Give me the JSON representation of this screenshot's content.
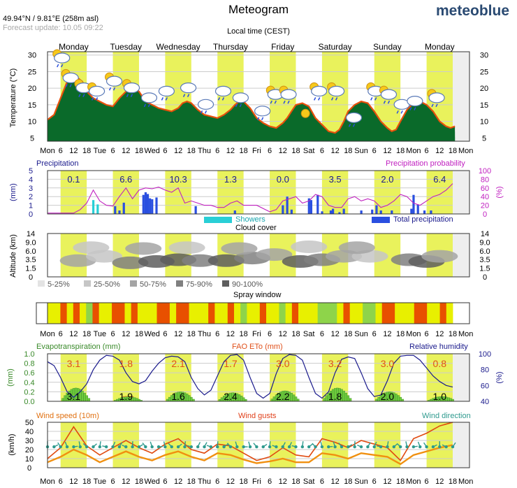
{
  "header": {
    "title": "Meteogram",
    "location": "49.94°N / 9.81°E (258m asl)",
    "update": "Forecast update: 10.05 09:22",
    "brand": "meteoblue",
    "local_time": "Local time (CEST)"
  },
  "days": [
    "Monday",
    "Tuesday",
    "Wednesday",
    "Thursday",
    "Friday",
    "Saturday",
    "Sunday",
    "Monday"
  ],
  "hour_axis": [
    "Mon",
    "6",
    "12",
    "18",
    "Tue",
    "6",
    "12",
    "18",
    "Wed",
    "6",
    "12",
    "18",
    "Thu",
    "6",
    "12",
    "18",
    "Fri",
    "6",
    "12",
    "18",
    "Sat",
    "6",
    "12",
    "18",
    "Sun",
    "6",
    "12",
    "18",
    "Mon",
    "6",
    "12",
    "18",
    "Mon"
  ],
  "temperature_panel": {
    "ylabel": "Temperature (°C)",
    "ticks": [
      "5",
      "10",
      "15",
      "20",
      "25",
      "30"
    ],
    "ylim": [
      4,
      31
    ]
  },
  "precip_panel": {
    "left_title": "Precipitation",
    "right_title": "Precipitation probability",
    "ylabel_left": "(mm)",
    "ylabel_right": "(%)",
    "ticks_left": [
      "0",
      "1",
      "2",
      "3",
      "4",
      "5"
    ],
    "ticks_right": [
      "0",
      "20",
      "40",
      "60",
      "80",
      "100"
    ],
    "legend_showers": "Showers",
    "legend_total": "Total precipitation",
    "daily_totals": [
      "0.1",
      "6.6",
      "10.3",
      "1.3",
      "0.0",
      "3.5",
      "2.0",
      "6.4"
    ]
  },
  "cloud_panel": {
    "title": "Cloud cover",
    "ylabel": "Altitude (km)",
    "ticks": [
      "0",
      "1.5",
      "3.5",
      "6.0",
      "9.0",
      "14"
    ],
    "legend": [
      "5-25%",
      "25-50%",
      "50-75%",
      "75-90%",
      "90-100%"
    ]
  },
  "spray_panel": {
    "title": "Spray window"
  },
  "evap_panel": {
    "left_title": "Evapotranspiration (mm)",
    "mid_title": "FAO ETo (mm)",
    "right_title": "Relative humidity",
    "ylabel_left": "(mm)",
    "ylabel_right": "(%)",
    "ticks_left": [
      "0.0",
      "0.2",
      "0.4",
      "0.6",
      "0.8",
      "1.0"
    ],
    "ticks_right": [
      "40",
      "60",
      "80",
      "100"
    ],
    "fao_totals": [
      "3.1",
      "1.8",
      "2.1",
      "1.7",
      "3.0",
      "3.2",
      "3.0",
      "0.8"
    ],
    "evap_totals": [
      "3.1",
      "1.9",
      "1.6",
      "2.4",
      "2.2",
      "1.8",
      "2.0",
      "1.0"
    ]
  },
  "wind_panel": {
    "left_title": "Wind speed (10m)",
    "mid_title": "Wind gusts",
    "right_title": "Wind direction",
    "ylabel": "(km/h)",
    "ticks": [
      "0",
      "10",
      "20",
      "30",
      "40",
      "50"
    ]
  },
  "colors": {
    "daylight": "#e9f25c",
    "temp_line": "#e8500c",
    "precip_total": "#2a4fe0",
    "showers": "#29cfd6",
    "probability": "#c020c0",
    "humidity": "#1a1a8c",
    "evap": "#6ecb3c",
    "fao": "#e0701a",
    "wind_speed": "#f09010",
    "wind_gusts": "#e04a10",
    "wind_dir": "#2e9a8e"
  },
  "chart_data": [
    {
      "type": "area",
      "title": "",
      "ylabel": "Temperature (°C)",
      "ylim": [
        4,
        31
      ],
      "x": [
        0,
        3,
        6,
        9,
        12,
        14,
        16,
        18,
        21,
        24,
        27,
        30,
        33,
        36,
        38,
        40,
        42,
        45,
        48,
        51,
        54,
        57,
        60,
        62,
        64,
        66,
        69,
        72,
        75,
        78,
        81,
        84,
        86,
        88,
        90,
        93,
        96,
        99,
        102,
        105,
        108,
        110,
        112,
        114,
        117,
        120,
        123,
        126,
        129,
        132,
        134,
        136,
        138,
        141,
        144,
        147,
        150,
        153,
        156,
        158,
        160,
        162,
        165,
        168,
        171,
        174,
        177,
        180,
        183,
        185,
        187
      ],
      "series": [
        {
          "values": [
            10.5,
            12,
            17,
            22,
            23.5,
            23,
            22,
            19,
            17,
            16,
            15,
            14.5,
            17,
            19,
            20,
            20,
            19,
            16,
            15,
            14,
            13.5,
            13,
            14,
            15.5,
            16,
            15.5,
            13.5,
            12,
            11.5,
            11,
            12,
            13.5,
            15,
            16,
            16,
            14,
            11,
            9.5,
            8.5,
            8,
            9.5,
            11,
            13,
            15,
            15.5,
            14.5,
            11,
            9,
            7,
            6.5,
            7.5,
            10,
            13,
            15,
            16,
            15.5,
            13,
            10,
            8,
            7,
            7.5,
            10,
            13.5,
            15.5,
            16,
            15,
            13,
            10,
            8.5,
            8,
            8.5
          ]
        }
      ]
    },
    {
      "type": "bar",
      "title": "Precipitation",
      "ylabel": "(mm)",
      "ylim": [
        0,
        5
      ],
      "x": [
        21,
        23,
        31,
        33,
        35,
        44,
        45,
        46,
        47,
        48,
        50,
        68,
        86,
        108,
        110,
        112,
        120,
        121,
        122,
        124,
        126,
        130,
        131,
        134,
        136,
        144,
        147,
        149,
        151,
        153,
        154,
        158,
        167,
        168,
        170,
        173,
        176
      ],
      "series": [
        {
          "name": "Showers",
          "values": [
            1.6,
            1.1,
            0,
            0,
            0,
            0,
            0,
            0,
            0,
            0,
            0,
            0,
            0,
            0,
            0,
            0,
            0,
            0,
            0,
            0,
            0,
            0,
            0,
            0,
            0,
            0,
            0,
            0,
            0,
            0,
            0,
            0,
            0,
            0,
            0,
            0,
            0
          ]
        },
        {
          "name": "Total precipitation",
          "values": [
            0,
            0,
            0.9,
            0.4,
            1.3,
            2.2,
            2.5,
            2.3,
            1.8,
            1.7,
            1.9,
            0.9,
            0.4,
            1.0,
            2.0,
            0.5,
            1.8,
            1.6,
            0,
            2.2,
            0.3,
            0.4,
            0.6,
            0.2,
            0.6,
            0.4,
            0,
            0.5,
            1.0,
            0.4,
            0,
            0.4,
            0.6,
            2.2,
            1.1,
            0.4,
            0.4
          ]
        }
      ]
    },
    {
      "type": "line",
      "title": "Precipitation probability",
      "ylabel": "(%)",
      "ylim": [
        0,
        100
      ],
      "x": [
        0,
        6,
        12,
        15,
        18,
        21,
        24,
        27,
        30,
        33,
        36,
        39,
        42,
        45,
        48,
        51,
        54,
        57,
        60,
        63,
        66,
        69,
        72,
        75,
        78,
        81,
        84,
        87,
        90,
        96,
        102,
        105,
        108,
        111,
        114,
        117,
        120,
        123,
        126,
        129,
        132,
        135,
        138,
        141,
        144,
        147,
        150,
        153,
        156,
        159,
        162,
        165,
        168,
        171,
        174,
        177,
        180,
        183,
        186
      ],
      "series": [
        {
          "values": [
            2,
            2,
            2,
            10,
            25,
            55,
            30,
            20,
            18,
            40,
            60,
            35,
            55,
            60,
            58,
            62,
            55,
            50,
            60,
            25,
            30,
            25,
            20,
            20,
            15,
            15,
            25,
            30,
            20,
            20,
            5,
            10,
            30,
            35,
            40,
            25,
            30,
            45,
            40,
            20,
            15,
            15,
            35,
            40,
            30,
            35,
            30,
            15,
            20,
            30,
            45,
            40,
            25,
            20,
            30,
            40,
            45,
            55,
            70
          ]
        }
      ]
    },
    {
      "type": "line",
      "title": "Relative humidity",
      "ylabel": "(%)",
      "ylim": [
        40,
        100
      ],
      "x": [
        0,
        3,
        6,
        9,
        12,
        15,
        18,
        21,
        24,
        27,
        30,
        33,
        36,
        39,
        42,
        45,
        48,
        51,
        54,
        57,
        60,
        63,
        66,
        69,
        72,
        75,
        78,
        81,
        84,
        87,
        90,
        93,
        96,
        99,
        102,
        105,
        108,
        111,
        114,
        117,
        120,
        123,
        126,
        129,
        132,
        135,
        138,
        141,
        144,
        147,
        150,
        153,
        156,
        159,
        162,
        165,
        168,
        171,
        174,
        177,
        180,
        183,
        186
      ],
      "series": [
        {
          "values": [
            90,
            85,
            70,
            52,
            45,
            52,
            62,
            80,
            92,
            98,
            97,
            92,
            76,
            65,
            62,
            66,
            78,
            88,
            95,
            97,
            96,
            90,
            70,
            56,
            48,
            54,
            72,
            90,
            98,
            99,
            92,
            70,
            50,
            44,
            50,
            75,
            94,
            99,
            98,
            92,
            70,
            50,
            44,
            52,
            76,
            93,
            96,
            94,
            76,
            56,
            46,
            48,
            66,
            88,
            97,
            98,
            98,
            92,
            82,
            72,
            65,
            60,
            58
          ]
        }
      ]
    },
    {
      "type": "line",
      "title": "Wind speed (10m)",
      "ylabel": "(km/h)",
      "ylim": [
        0,
        50
      ],
      "x": [
        0,
        6,
        12,
        18,
        24,
        30,
        36,
        42,
        48,
        54,
        60,
        66,
        72,
        78,
        84,
        90,
        96,
        102,
        108,
        114,
        120,
        126,
        132,
        138,
        144,
        150,
        156,
        162,
        168,
        174,
        180,
        186
      ],
      "series": [
        {
          "name": "Wind speed (10m)",
          "values": [
            6,
            12,
            20,
            14,
            6,
            12,
            18,
            12,
            8,
            14,
            18,
            12,
            8,
            16,
            14,
            9,
            5,
            7,
            10,
            6,
            6,
            16,
            14,
            10,
            16,
            14,
            12,
            4,
            14,
            18,
            22,
            25
          ]
        },
        {
          "name": "Wind gusts",
          "values": [
            10,
            22,
            45,
            24,
            14,
            22,
            30,
            22,
            16,
            26,
            32,
            20,
            16,
            26,
            24,
            16,
            8,
            12,
            22,
            14,
            12,
            32,
            28,
            22,
            30,
            26,
            22,
            8,
            32,
            38,
            46,
            50
          ]
        }
      ]
    }
  ]
}
